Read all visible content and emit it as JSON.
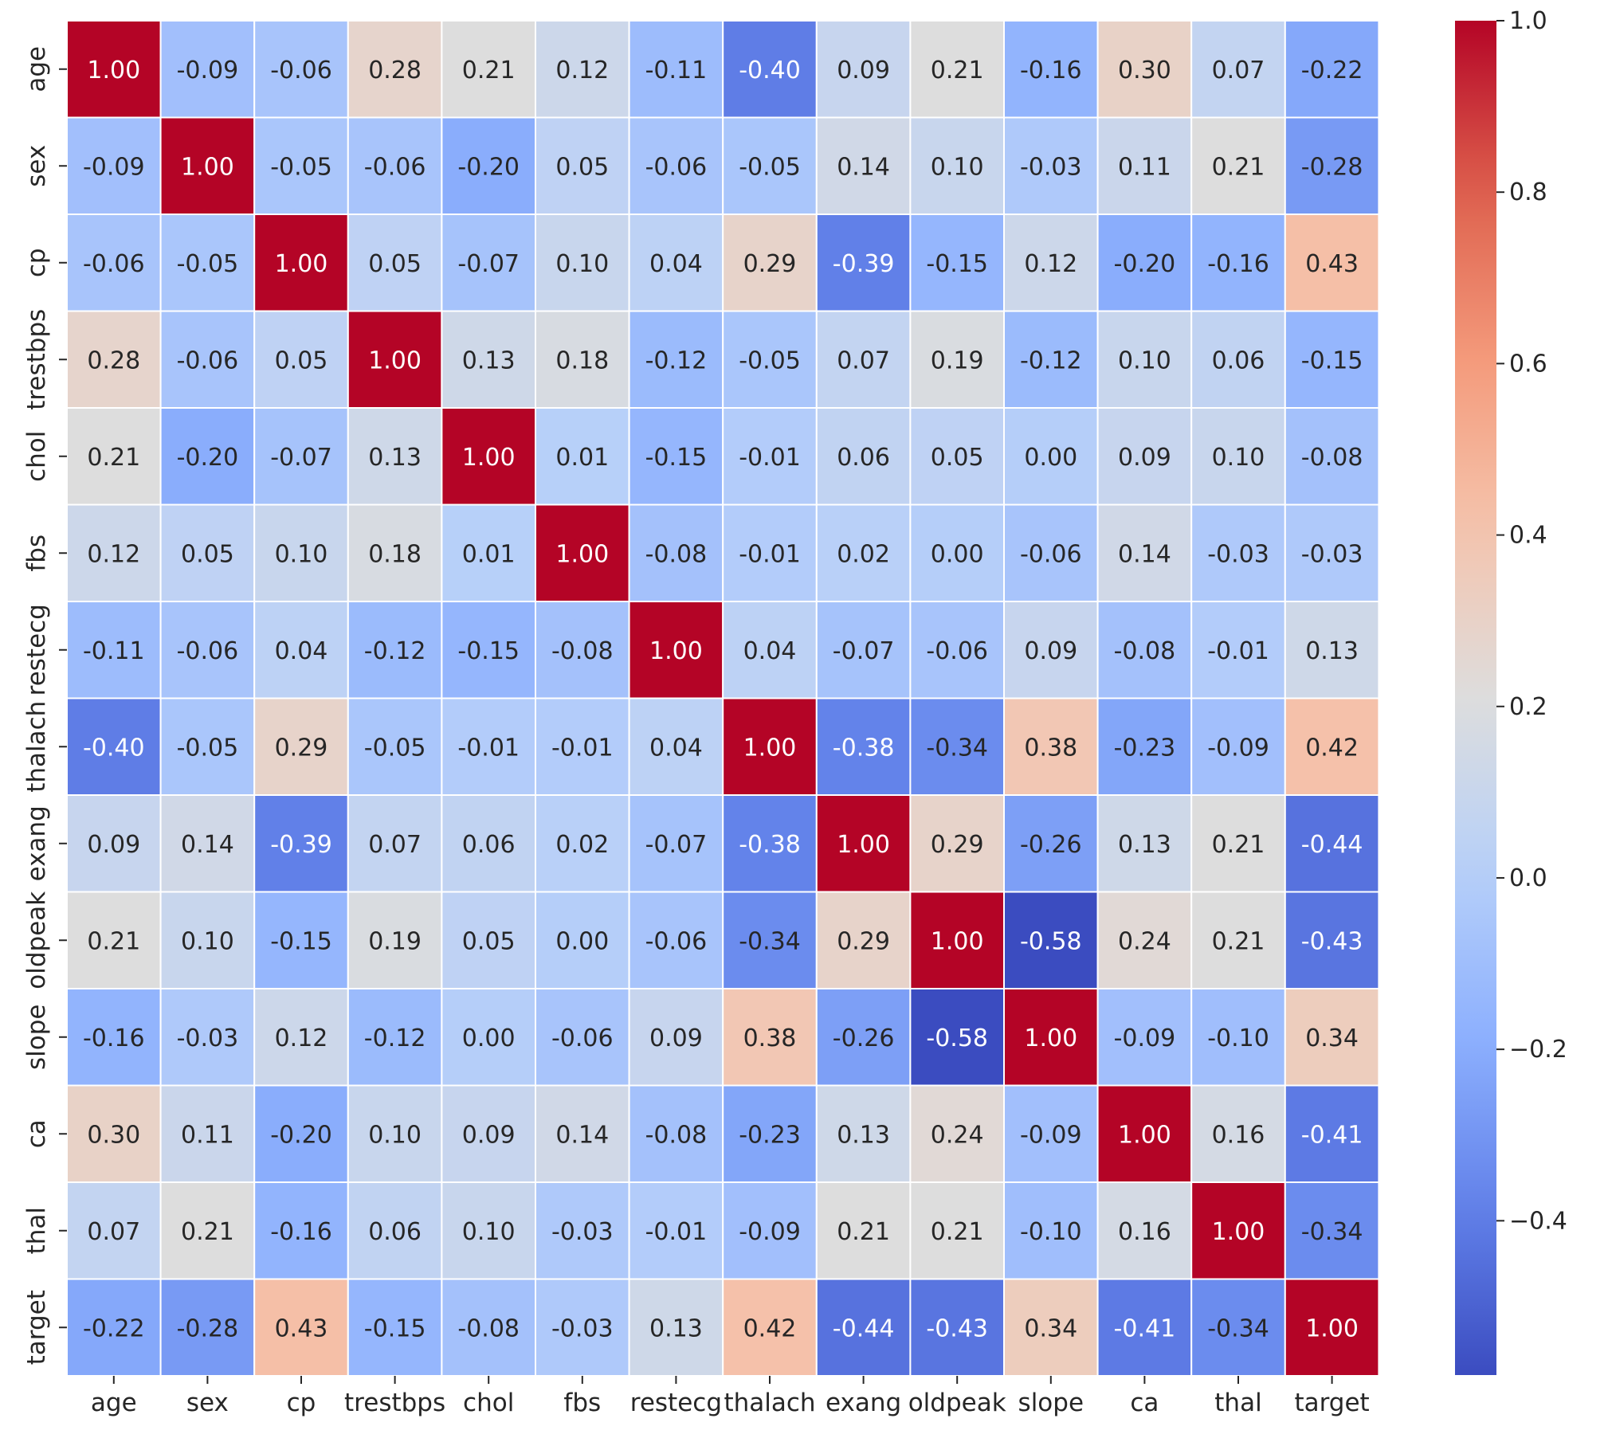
{
  "chart_data": {
    "type": "heatmap",
    "title": "",
    "xlabel": "",
    "ylabel": "",
    "annotated": true,
    "number_format": "0.00",
    "row_labels": [
      "age",
      "sex",
      "cp",
      "trestbps",
      "chol",
      "fbs",
      "restecg",
      "thalach",
      "exang",
      "oldpeak",
      "slope",
      "ca",
      "thal",
      "target"
    ],
    "col_labels": [
      "age",
      "sex",
      "cp",
      "trestbps",
      "chol",
      "fbs",
      "restecg",
      "thalach",
      "exang",
      "oldpeak",
      "slope",
      "ca",
      "thal",
      "target"
    ],
    "matrix": [
      [
        1.0,
        -0.09,
        -0.06,
        0.28,
        0.21,
        0.12,
        -0.11,
        -0.4,
        0.09,
        0.21,
        -0.16,
        0.3,
        0.07,
        -0.22
      ],
      [
        -0.09,
        1.0,
        -0.05,
        -0.06,
        -0.2,
        0.05,
        -0.06,
        -0.05,
        0.14,
        0.1,
        -0.03,
        0.11,
        0.21,
        -0.28
      ],
      [
        -0.06,
        -0.05,
        1.0,
        0.05,
        -0.07,
        0.1,
        0.04,
        0.29,
        -0.39,
        -0.15,
        0.12,
        -0.2,
        -0.16,
        0.43
      ],
      [
        0.28,
        -0.06,
        0.05,
        1.0,
        0.13,
        0.18,
        -0.12,
        -0.05,
        0.07,
        0.19,
        -0.12,
        0.1,
        0.06,
        -0.15
      ],
      [
        0.21,
        -0.2,
        -0.07,
        0.13,
        1.0,
        0.01,
        -0.15,
        -0.01,
        0.06,
        0.05,
        0.0,
        0.09,
        0.1,
        -0.08
      ],
      [
        0.12,
        0.05,
        0.1,
        0.18,
        0.01,
        1.0,
        -0.08,
        -0.01,
        0.02,
        0.0,
        -0.06,
        0.14,
        -0.03,
        -0.03
      ],
      [
        -0.11,
        -0.06,
        0.04,
        -0.12,
        -0.15,
        -0.08,
        1.0,
        0.04,
        -0.07,
        -0.06,
        0.09,
        -0.08,
        -0.01,
        0.13
      ],
      [
        -0.4,
        -0.05,
        0.29,
        -0.05,
        -0.01,
        -0.01,
        0.04,
        1.0,
        -0.38,
        -0.34,
        0.38,
        -0.23,
        -0.09,
        0.42
      ],
      [
        0.09,
        0.14,
        -0.39,
        0.07,
        0.06,
        0.02,
        -0.07,
        -0.38,
        1.0,
        0.29,
        -0.26,
        0.13,
        0.21,
        -0.44
      ],
      [
        0.21,
        0.1,
        -0.15,
        0.19,
        0.05,
        0.0,
        -0.06,
        -0.34,
        0.29,
        1.0,
        -0.58,
        0.24,
        0.21,
        -0.43
      ],
      [
        -0.16,
        -0.03,
        0.12,
        -0.12,
        0.0,
        -0.06,
        0.09,
        0.38,
        -0.26,
        -0.58,
        1.0,
        -0.09,
        -0.1,
        0.34
      ],
      [
        0.3,
        0.11,
        -0.2,
        0.1,
        0.09,
        0.14,
        -0.08,
        -0.23,
        0.13,
        0.24,
        -0.09,
        1.0,
        0.16,
        -0.41
      ],
      [
        0.07,
        0.21,
        -0.16,
        0.06,
        0.1,
        -0.03,
        -0.01,
        -0.09,
        0.21,
        0.21,
        -0.1,
        0.16,
        1.0,
        -0.34
      ],
      [
        -0.22,
        -0.28,
        0.43,
        -0.15,
        -0.08,
        -0.03,
        0.13,
        0.42,
        -0.44,
        -0.43,
        0.34,
        -0.41,
        -0.34,
        1.0
      ]
    ],
    "colormap": "coolwarm",
    "vmin": -0.58,
    "vmax": 1.0,
    "grid_lines": "white",
    "colorbar": {
      "position": "right",
      "ticks": [
        1.0,
        0.8,
        0.6,
        0.4,
        0.2,
        0.0,
        -0.2,
        -0.4
      ],
      "tick_labels": [
        "1.0",
        "0.8",
        "0.6",
        "0.4",
        "0.2",
        "0.0",
        "−0.2",
        "−0.4"
      ]
    },
    "colors": {
      "blue_end": "#3b4cc0",
      "mid": "#dddddd",
      "red_end": "#b40426",
      "cell_border": "#ffffff",
      "tick_text": "#262626"
    }
  }
}
